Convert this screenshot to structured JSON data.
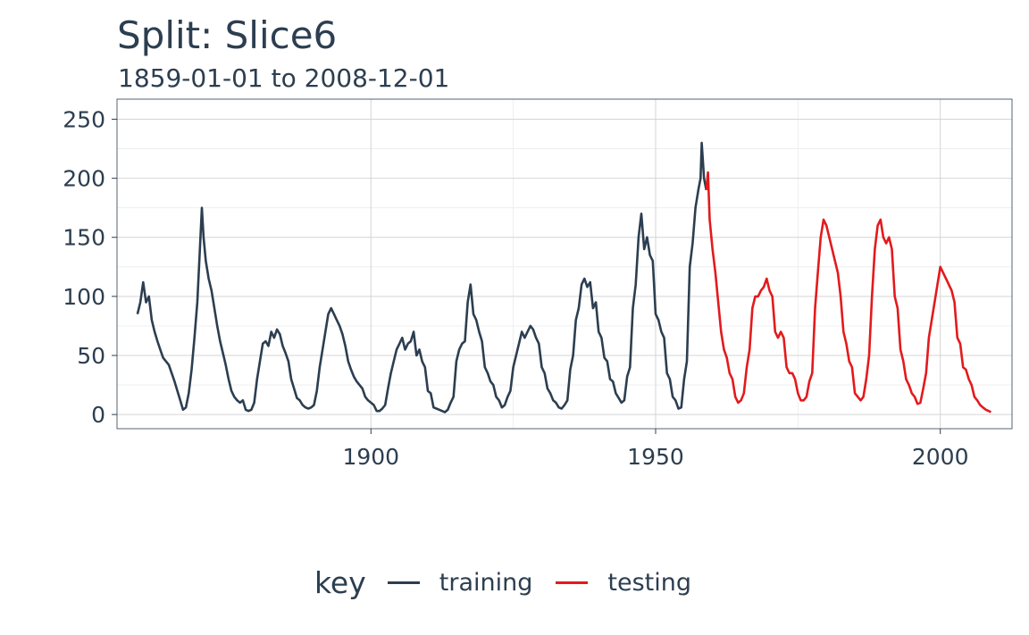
{
  "chart_data": {
    "type": "line",
    "title": "Split: Slice6",
    "subtitle": "1859-01-01 to 2008-12-01",
    "xlabel": "",
    "ylabel": "",
    "xlim": [
      1855.4,
      2012.6
    ],
    "ylim": [
      -12,
      267
    ],
    "x_ticks": [
      1900,
      1950,
      2000
    ],
    "y_ticks": [
      0,
      50,
      100,
      150,
      200,
      250
    ],
    "grid": true,
    "legend": {
      "title": "key",
      "position": "bottom"
    },
    "series": [
      {
        "name": "training",
        "color": "#2c3e50",
        "points": [
          [
            1859.0,
            85
          ],
          [
            1859.5,
            95
          ],
          [
            1860.0,
            112
          ],
          [
            1860.5,
            95
          ],
          [
            1861.0,
            100
          ],
          [
            1861.5,
            80
          ],
          [
            1862.0,
            70
          ],
          [
            1862.5,
            62
          ],
          [
            1863.0,
            55
          ],
          [
            1863.5,
            48
          ],
          [
            1864.0,
            45
          ],
          [
            1864.5,
            42
          ],
          [
            1865.0,
            35
          ],
          [
            1865.5,
            28
          ],
          [
            1866.0,
            20
          ],
          [
            1866.5,
            12
          ],
          [
            1867.0,
            4
          ],
          [
            1867.5,
            6
          ],
          [
            1868.0,
            18
          ],
          [
            1868.5,
            38
          ],
          [
            1869.0,
            65
          ],
          [
            1869.5,
            95
          ],
          [
            1870.0,
            145
          ],
          [
            1870.3,
            175
          ],
          [
            1870.6,
            150
          ],
          [
            1871.0,
            130
          ],
          [
            1871.5,
            115
          ],
          [
            1872.0,
            105
          ],
          [
            1872.5,
            90
          ],
          [
            1873.0,
            75
          ],
          [
            1873.5,
            62
          ],
          [
            1874.0,
            52
          ],
          [
            1874.5,
            42
          ],
          [
            1875.0,
            30
          ],
          [
            1875.5,
            20
          ],
          [
            1876.0,
            15
          ],
          [
            1876.5,
            12
          ],
          [
            1877.0,
            10
          ],
          [
            1877.5,
            12
          ],
          [
            1878.0,
            4
          ],
          [
            1878.5,
            3
          ],
          [
            1879.0,
            4
          ],
          [
            1879.5,
            10
          ],
          [
            1880.0,
            30
          ],
          [
            1880.5,
            45
          ],
          [
            1881.0,
            60
          ],
          [
            1881.5,
            62
          ],
          [
            1882.0,
            58
          ],
          [
            1882.5,
            70
          ],
          [
            1883.0,
            65
          ],
          [
            1883.5,
            72
          ],
          [
            1884.0,
            68
          ],
          [
            1884.5,
            58
          ],
          [
            1885.0,
            52
          ],
          [
            1885.5,
            45
          ],
          [
            1886.0,
            30
          ],
          [
            1886.5,
            22
          ],
          [
            1887.0,
            14
          ],
          [
            1887.5,
            12
          ],
          [
            1888.0,
            8
          ],
          [
            1888.5,
            6
          ],
          [
            1889.0,
            5
          ],
          [
            1889.5,
            6
          ],
          [
            1890.0,
            8
          ],
          [
            1890.5,
            20
          ],
          [
            1891.0,
            40
          ],
          [
            1891.5,
            55
          ],
          [
            1892.0,
            70
          ],
          [
            1892.5,
            85
          ],
          [
            1893.0,
            90
          ],
          [
            1893.5,
            85
          ],
          [
            1894.0,
            80
          ],
          [
            1894.5,
            75
          ],
          [
            1895.0,
            68
          ],
          [
            1895.5,
            58
          ],
          [
            1896.0,
            45
          ],
          [
            1896.5,
            38
          ],
          [
            1897.0,
            32
          ],
          [
            1897.5,
            28
          ],
          [
            1898.0,
            25
          ],
          [
            1898.5,
            22
          ],
          [
            1899.0,
            15
          ],
          [
            1899.5,
            12
          ],
          [
            1900.0,
            10
          ],
          [
            1900.5,
            8
          ],
          [
            1901.0,
            3
          ],
          [
            1901.5,
            3
          ],
          [
            1902.0,
            5
          ],
          [
            1902.5,
            8
          ],
          [
            1903.0,
            22
          ],
          [
            1903.5,
            35
          ],
          [
            1904.0,
            45
          ],
          [
            1904.5,
            55
          ],
          [
            1905.0,
            60
          ],
          [
            1905.5,
            65
          ],
          [
            1906.0,
            55
          ],
          [
            1906.5,
            60
          ],
          [
            1907.0,
            62
          ],
          [
            1907.5,
            70
          ],
          [
            1908.0,
            50
          ],
          [
            1908.5,
            55
          ],
          [
            1909.0,
            45
          ],
          [
            1909.5,
            40
          ],
          [
            1910.0,
            20
          ],
          [
            1910.5,
            18
          ],
          [
            1911.0,
            6
          ],
          [
            1911.5,
            5
          ],
          [
            1912.0,
            4
          ],
          [
            1912.5,
            3
          ],
          [
            1913.0,
            2
          ],
          [
            1913.5,
            4
          ],
          [
            1914.0,
            10
          ],
          [
            1914.5,
            15
          ],
          [
            1915.0,
            45
          ],
          [
            1915.5,
            55
          ],
          [
            1916.0,
            60
          ],
          [
            1916.5,
            62
          ],
          [
            1917.0,
            95
          ],
          [
            1917.5,
            110
          ],
          [
            1918.0,
            85
          ],
          [
            1918.5,
            80
          ],
          [
            1919.0,
            70
          ],
          [
            1919.5,
            62
          ],
          [
            1920.0,
            40
          ],
          [
            1920.5,
            35
          ],
          [
            1921.0,
            28
          ],
          [
            1921.5,
            25
          ],
          [
            1922.0,
            15
          ],
          [
            1922.5,
            12
          ],
          [
            1923.0,
            6
          ],
          [
            1923.5,
            8
          ],
          [
            1924.0,
            15
          ],
          [
            1924.5,
            20
          ],
          [
            1925.0,
            40
          ],
          [
            1925.5,
            50
          ],
          [
            1926.0,
            60
          ],
          [
            1926.5,
            70
          ],
          [
            1927.0,
            65
          ],
          [
            1927.5,
            70
          ],
          [
            1928.0,
            75
          ],
          [
            1928.5,
            72
          ],
          [
            1929.0,
            65
          ],
          [
            1929.5,
            60
          ],
          [
            1930.0,
            40
          ],
          [
            1930.5,
            35
          ],
          [
            1931.0,
            22
          ],
          [
            1931.5,
            18
          ],
          [
            1932.0,
            12
          ],
          [
            1932.5,
            10
          ],
          [
            1933.0,
            6
          ],
          [
            1933.5,
            5
          ],
          [
            1934.0,
            8
          ],
          [
            1934.5,
            12
          ],
          [
            1935.0,
            38
          ],
          [
            1935.5,
            50
          ],
          [
            1936.0,
            80
          ],
          [
            1936.5,
            90
          ],
          [
            1937.0,
            110
          ],
          [
            1937.5,
            115
          ],
          [
            1938.0,
            108
          ],
          [
            1938.5,
            112
          ],
          [
            1939.0,
            90
          ],
          [
            1939.5,
            95
          ],
          [
            1940.0,
            70
          ],
          [
            1940.5,
            65
          ],
          [
            1941.0,
            48
          ],
          [
            1941.5,
            45
          ],
          [
            1942.0,
            30
          ],
          [
            1942.5,
            28
          ],
          [
            1943.0,
            18
          ],
          [
            1943.5,
            14
          ],
          [
            1944.0,
            10
          ],
          [
            1944.5,
            12
          ],
          [
            1945.0,
            32
          ],
          [
            1945.5,
            40
          ],
          [
            1946.0,
            90
          ],
          [
            1946.5,
            110
          ],
          [
            1947.0,
            150
          ],
          [
            1947.5,
            170
          ],
          [
            1948.0,
            140
          ],
          [
            1948.5,
            150
          ],
          [
            1949.0,
            135
          ],
          [
            1949.5,
            130
          ],
          [
            1950.0,
            85
          ],
          [
            1950.5,
            80
          ],
          [
            1951.0,
            70
          ],
          [
            1951.5,
            65
          ],
          [
            1952.0,
            35
          ],
          [
            1952.5,
            30
          ],
          [
            1953.0,
            15
          ],
          [
            1953.5,
            12
          ],
          [
            1954.0,
            5
          ],
          [
            1954.5,
            6
          ],
          [
            1955.0,
            30
          ],
          [
            1955.5,
            45
          ],
          [
            1956.0,
            125
          ],
          [
            1956.5,
            145
          ],
          [
            1957.0,
            175
          ],
          [
            1957.5,
            190
          ],
          [
            1957.9,
            200
          ],
          [
            1958.1,
            230
          ],
          [
            1958.5,
            200
          ],
          [
            1958.9,
            190
          ]
        ]
      },
      {
        "name": "testing",
        "color": "#e31a1c",
        "points": [
          [
            1958.9,
            190
          ],
          [
            1959.2,
            205
          ],
          [
            1959.5,
            165
          ],
          [
            1960.0,
            140
          ],
          [
            1960.5,
            120
          ],
          [
            1961.0,
            95
          ],
          [
            1961.5,
            70
          ],
          [
            1962.0,
            55
          ],
          [
            1962.5,
            48
          ],
          [
            1963.0,
            35
          ],
          [
            1963.5,
            30
          ],
          [
            1964.0,
            15
          ],
          [
            1964.5,
            10
          ],
          [
            1965.0,
            12
          ],
          [
            1965.5,
            18
          ],
          [
            1966.0,
            40
          ],
          [
            1966.5,
            55
          ],
          [
            1967.0,
            90
          ],
          [
            1967.5,
            100
          ],
          [
            1968.0,
            100
          ],
          [
            1968.5,
            105
          ],
          [
            1969.0,
            108
          ],
          [
            1969.5,
            115
          ],
          [
            1970.0,
            105
          ],
          [
            1970.5,
            100
          ],
          [
            1971.0,
            70
          ],
          [
            1971.5,
            65
          ],
          [
            1972.0,
            70
          ],
          [
            1972.5,
            65
          ],
          [
            1973.0,
            40
          ],
          [
            1973.5,
            35
          ],
          [
            1974.0,
            35
          ],
          [
            1974.5,
            30
          ],
          [
            1975.0,
            18
          ],
          [
            1975.5,
            12
          ],
          [
            1976.0,
            12
          ],
          [
            1976.5,
            15
          ],
          [
            1977.0,
            28
          ],
          [
            1977.5,
            35
          ],
          [
            1978.0,
            90
          ],
          [
            1978.5,
            120
          ],
          [
            1979.0,
            150
          ],
          [
            1979.5,
            165
          ],
          [
            1980.0,
            160
          ],
          [
            1980.5,
            150
          ],
          [
            1981.0,
            140
          ],
          [
            1981.5,
            130
          ],
          [
            1982.0,
            120
          ],
          [
            1982.5,
            100
          ],
          [
            1983.0,
            70
          ],
          [
            1983.5,
            60
          ],
          [
            1984.0,
            45
          ],
          [
            1984.5,
            40
          ],
          [
            1985.0,
            18
          ],
          [
            1985.5,
            15
          ],
          [
            1986.0,
            12
          ],
          [
            1986.5,
            15
          ],
          [
            1987.0,
            30
          ],
          [
            1987.5,
            50
          ],
          [
            1988.0,
            100
          ],
          [
            1988.5,
            140
          ],
          [
            1989.0,
            160
          ],
          [
            1989.5,
            165
          ],
          [
            1990.0,
            150
          ],
          [
            1990.5,
            145
          ],
          [
            1991.0,
            150
          ],
          [
            1991.5,
            140
          ],
          [
            1992.0,
            100
          ],
          [
            1992.5,
            90
          ],
          [
            1993.0,
            55
          ],
          [
            1993.5,
            45
          ],
          [
            1994.0,
            30
          ],
          [
            1994.5,
            25
          ],
          [
            1995.0,
            18
          ],
          [
            1995.5,
            15
          ],
          [
            1996.0,
            9
          ],
          [
            1996.5,
            10
          ],
          [
            1997.0,
            22
          ],
          [
            1997.5,
            35
          ],
          [
            1998.0,
            65
          ],
          [
            1998.5,
            80
          ],
          [
            1999.0,
            95
          ],
          [
            1999.5,
            110
          ],
          [
            2000.0,
            125
          ],
          [
            2000.5,
            120
          ],
          [
            2001.0,
            115
          ],
          [
            2001.5,
            110
          ],
          [
            2002.0,
            105
          ],
          [
            2002.5,
            95
          ],
          [
            2003.0,
            65
          ],
          [
            2003.5,
            60
          ],
          [
            2004.0,
            40
          ],
          [
            2004.5,
            38
          ],
          [
            2005.0,
            30
          ],
          [
            2005.5,
            25
          ],
          [
            2006.0,
            15
          ],
          [
            2006.5,
            12
          ],
          [
            2007.0,
            8
          ],
          [
            2007.5,
            6
          ],
          [
            2008.0,
            4
          ],
          [
            2008.5,
            3
          ],
          [
            2008.9,
            2
          ]
        ]
      }
    ]
  }
}
